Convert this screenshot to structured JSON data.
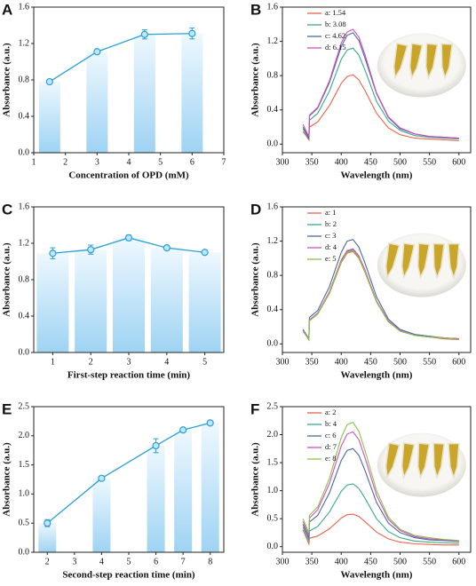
{
  "chart_data": [
    {
      "type": "bar",
      "label": "A",
      "xlabel": "Concentration of OPD (mM)",
      "ylabel": "Absorbance (a.u.)",
      "x": [
        1.5,
        3,
        4.5,
        6
      ],
      "values": [
        0.78,
        1.11,
        1.3,
        1.31
      ],
      "errors": [
        0.02,
        0.02,
        0.05,
        0.06
      ],
      "color": "#2a9fd6",
      "xlim": [
        1,
        7
      ],
      "xticks": [
        1,
        2,
        3,
        4,
        5,
        6,
        7
      ],
      "ylim": [
        0,
        1.6
      ],
      "yticks": [
        {
          "value": 0,
          "label": "0.0"
        },
        0.4,
        0.8,
        1.2,
        1.6
      ]
    },
    {
      "type": "line",
      "label": "B",
      "xlabel": "Wavelength (nm)",
      "ylabel": "Absorbance (a.u.)",
      "x": [
        335,
        345,
        346,
        360,
        380,
        400,
        410,
        420,
        430,
        440,
        460,
        480,
        500,
        525,
        550,
        575,
        600
      ],
      "series": [
        {
          "name": "a: 1.54",
          "color": "#e8644a",
          "values": [
            0.15,
            0.05,
            0.2,
            0.26,
            0.45,
            0.71,
            0.79,
            0.81,
            0.75,
            0.63,
            0.36,
            0.19,
            0.11,
            0.07,
            0.06,
            0.05,
            0.04
          ]
        },
        {
          "name": "b: 3.08",
          "color": "#3aa88c",
          "values": [
            0.18,
            0.06,
            0.28,
            0.36,
            0.62,
            0.99,
            1.1,
            1.12,
            1.04,
            0.87,
            0.5,
            0.27,
            0.16,
            0.1,
            0.08,
            0.07,
            0.06
          ]
        },
        {
          "name": "c: 4.62",
          "color": "#4a6a9a",
          "values": [
            0.2,
            0.07,
            0.33,
            0.42,
            0.72,
            1.14,
            1.27,
            1.3,
            1.21,
            1.01,
            0.59,
            0.31,
            0.18,
            0.12,
            0.09,
            0.08,
            0.07
          ]
        },
        {
          "name": "d: 6.15",
          "color": "#d050c0",
          "values": [
            0.23,
            0.09,
            0.34,
            0.43,
            0.74,
            1.18,
            1.31,
            1.34,
            1.25,
            1.05,
            0.6,
            0.32,
            0.19,
            0.12,
            0.09,
            0.08,
            0.07
          ]
        }
      ],
      "xlim": [
        300,
        620
      ],
      "xticks": [
        300,
        350,
        400,
        450,
        500,
        550,
        600
      ],
      "ylim": [
        -0.1,
        1.6
      ],
      "yticks": [
        {
          "value": 0,
          "label": "0.0"
        },
        0.4,
        0.8,
        1.2,
        1.6
      ]
    },
    {
      "type": "bar",
      "label": "C",
      "xlabel": "First-step reaction time (min)",
      "ylabel": "Absorbance (a.u.)",
      "x": [
        1,
        2,
        3,
        4,
        5
      ],
      "values": [
        1.09,
        1.13,
        1.26,
        1.15,
        1.1
      ],
      "errors": [
        0.06,
        0.05,
        0.03,
        0.01,
        0.01
      ],
      "color": "#2a9fd6",
      "xlim": [
        0.5,
        5.5
      ],
      "xticks": [
        1,
        2,
        3,
        4,
        5
      ],
      "ylim": [
        0,
        1.6
      ],
      "yticks": [
        {
          "value": 0,
          "label": "0.0"
        },
        0.4,
        0.8,
        1.2,
        1.6
      ]
    },
    {
      "type": "line",
      "label": "D",
      "xlabel": "Wavelength (nm)",
      "ylabel": "Absorbance (a.u.)",
      "x": [
        335,
        345,
        346,
        360,
        380,
        400,
        410,
        420,
        430,
        440,
        460,
        480,
        500,
        525,
        550,
        575,
        600
      ],
      "series": [
        {
          "name": "a: 1",
          "color": "#e8644a",
          "values": [
            0.15,
            0.05,
            0.27,
            0.35,
            0.59,
            0.95,
            1.06,
            1.08,
            1.0,
            0.84,
            0.49,
            0.26,
            0.15,
            0.1,
            0.08,
            0.06,
            0.05
          ]
        },
        {
          "name": "b: 2",
          "color": "#3aa88c",
          "values": [
            0.16,
            0.05,
            0.28,
            0.35,
            0.61,
            0.97,
            1.08,
            1.1,
            1.02,
            0.86,
            0.5,
            0.26,
            0.15,
            0.1,
            0.08,
            0.07,
            0.06
          ]
        },
        {
          "name": "c: 3",
          "color": "#4a6a9a",
          "values": [
            0.17,
            0.06,
            0.31,
            0.39,
            0.67,
            1.07,
            1.2,
            1.22,
            1.13,
            0.95,
            0.55,
            0.29,
            0.17,
            0.11,
            0.09,
            0.07,
            0.06
          ]
        },
        {
          "name": "d: 4",
          "color": "#d050c0",
          "values": [
            0.16,
            0.05,
            0.28,
            0.36,
            0.61,
            0.98,
            1.09,
            1.11,
            1.03,
            0.87,
            0.5,
            0.27,
            0.16,
            0.1,
            0.08,
            0.07,
            0.06
          ]
        },
        {
          "name": "e: 5",
          "color": "#8bc34a",
          "values": [
            0.15,
            0.05,
            0.27,
            0.35,
            0.6,
            0.96,
            1.07,
            1.09,
            1.01,
            0.85,
            0.49,
            0.26,
            0.15,
            0.1,
            0.08,
            0.07,
            0.05
          ]
        }
      ],
      "xlim": [
        300,
        620
      ],
      "xticks": [
        300,
        350,
        400,
        450,
        500,
        550,
        600
      ],
      "ylim": [
        -0.1,
        1.6
      ],
      "yticks": [
        {
          "value": 0,
          "label": "0.0"
        },
        0.4,
        0.8,
        1.2,
        1.6
      ]
    },
    {
      "type": "bar",
      "label": "E",
      "xlabel": "Second-step reaction time (min)",
      "ylabel": "Absorbance (a.u.)",
      "x": [
        2,
        4,
        6,
        7,
        8
      ],
      "values": [
        0.5,
        1.27,
        1.83,
        2.1,
        2.22
      ],
      "errors": [
        0.06,
        0.02,
        0.12,
        0.03,
        0.02
      ],
      "color": "#2a9fd6",
      "xlim": [
        1.5,
        8.5
      ],
      "xticks": [
        2,
        3,
        4,
        5,
        6,
        7,
        8
      ],
      "ylim": [
        0,
        2.5
      ],
      "yticks": [
        {
          "value": 0,
          "label": "0.0"
        },
        0.5,
        {
          "value": 1,
          "label": "1.0"
        },
        1.5,
        {
          "value": 2,
          "label": "2.0"
        },
        2.5
      ]
    },
    {
      "type": "line",
      "label": "F",
      "xlabel": "Wavelength (nm)",
      "ylabel": "Absorbance (a.u.)",
      "x": [
        335,
        345,
        346,
        360,
        380,
        400,
        410,
        420,
        430,
        440,
        460,
        480,
        500,
        525,
        550,
        575,
        600
      ],
      "series": [
        {
          "name": "a: 2",
          "color": "#e8644a",
          "values": [
            0.3,
            0.05,
            0.15,
            0.19,
            0.32,
            0.51,
            0.57,
            0.58,
            0.54,
            0.45,
            0.26,
            0.14,
            0.08,
            0.05,
            0.04,
            0.03,
            0.03
          ]
        },
        {
          "name": "b: 4",
          "color": "#3aa88c",
          "values": [
            0.35,
            0.1,
            0.28,
            0.36,
            0.62,
            0.99,
            1.1,
            1.12,
            1.04,
            0.87,
            0.5,
            0.27,
            0.16,
            0.1,
            0.08,
            0.07,
            0.06
          ]
        },
        {
          "name": "c: 6",
          "color": "#4a6a9a",
          "values": [
            0.4,
            0.15,
            0.44,
            0.56,
            0.96,
            1.54,
            1.72,
            1.75,
            1.63,
            1.37,
            0.79,
            0.42,
            0.25,
            0.16,
            0.12,
            0.11,
            0.09
          ]
        },
        {
          "name": "d: 7",
          "color": "#d050c0",
          "values": [
            0.45,
            0.2,
            0.51,
            0.66,
            1.13,
            1.8,
            2.01,
            2.05,
            1.91,
            1.6,
            0.92,
            0.49,
            0.29,
            0.18,
            0.14,
            0.12,
            0.1
          ]
        },
        {
          "name": "e: 8",
          "color": "#8bc34a",
          "values": [
            0.5,
            0.25,
            0.56,
            0.71,
            1.22,
            1.95,
            2.18,
            2.22,
            2.06,
            1.73,
            1.0,
            0.53,
            0.31,
            0.2,
            0.16,
            0.13,
            0.11
          ]
        }
      ],
      "xlim": [
        300,
        620
      ],
      "xticks": [
        300,
        350,
        400,
        450,
        500,
        550,
        600
      ],
      "ylim": [
        -0.1,
        2.5
      ],
      "yticks": [
        {
          "value": 0,
          "label": "0.0"
        },
        0.5,
        {
          "value": 1,
          "label": "1.0"
        },
        1.5,
        {
          "value": 2,
          "label": "2.0"
        },
        2.5
      ]
    }
  ]
}
